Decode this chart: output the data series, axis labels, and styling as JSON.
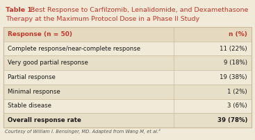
{
  "title_bold": "Table 1:",
  "title_regular": " Best Response to Carfilzomib, Lenalidomide, and Dexamethasone\nTherapy at the Maximum Protocol Dose in a Phase II Study",
  "header_col1": "Response (n = 50)",
  "header_col2": "n (%)",
  "rows": [
    [
      "Complete response/near-complete response",
      "11 (22%)"
    ],
    [
      "Very good partial response",
      "9 (18%)"
    ],
    [
      "Partial response",
      "19 (38%)"
    ],
    [
      "Minimal response",
      "1 (2%)"
    ],
    [
      "Stable disease",
      "3 (6%)"
    ],
    [
      "Overall response rate",
      "39 (78%)"
    ]
  ],
  "footer": "Courtesy of William I. Bensinger, MD. Adapted from Wang M, et al.²",
  "bg_color": "#f2ead8",
  "header_bg": "#e5d9c0",
  "alt_row_bg": "#ede3cc",
  "title_color": "#c0392b",
  "header_text_color": "#c0392b",
  "body_text_color": "#1a1a1a",
  "footer_text_color": "#555555",
  "border_color": "#c8b898",
  "row_colors": [
    "#f2ead8",
    "#e8dfc8",
    "#f2ead8",
    "#e8dfc8",
    "#f2ead8",
    "#e8dfc8"
  ]
}
